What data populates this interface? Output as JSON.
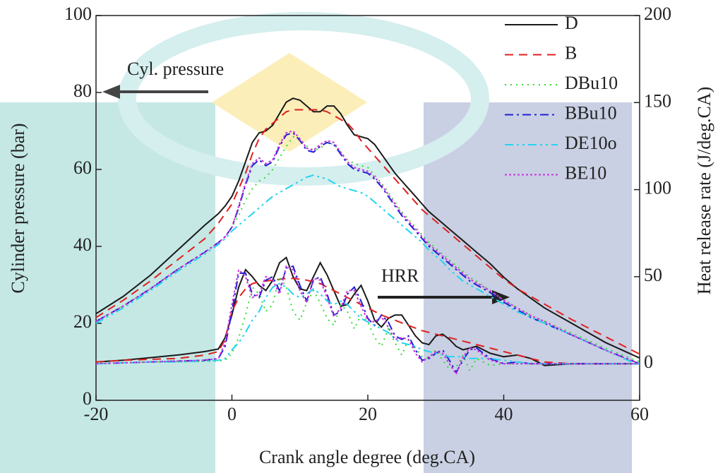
{
  "chart_data": {
    "type": "line",
    "x_label": "Crank angle degree (deg.CA)",
    "y_label": "Cylinder pressure (bar)",
    "y2_label": "Heat release rate (J/deg.CA)",
    "annotations": [
      "Cyl. pressure",
      "HRR"
    ],
    "xlim": [
      -20,
      60
    ],
    "xticks": [
      -20,
      0,
      20,
      40,
      60
    ],
    "ylim": [
      0,
      100
    ],
    "yticks": [
      0,
      20,
      40,
      60,
      80,
      100
    ],
    "y2lim": [
      -21,
      200
    ],
    "y2ticks": [
      0,
      50,
      100,
      150,
      200
    ],
    "legend": "upper right",
    "x": [
      -20,
      -16,
      -12,
      -8,
      -4,
      -2,
      -1,
      0,
      1,
      2,
      3,
      4,
      5,
      6,
      7,
      8,
      9,
      10,
      11,
      12,
      13,
      14,
      15,
      16,
      17,
      18,
      19,
      20,
      21,
      22,
      23,
      24,
      25,
      26,
      27,
      28,
      29,
      30,
      31,
      32,
      33,
      34,
      35,
      36,
      38,
      40,
      42,
      44,
      46,
      50,
      55,
      60
    ],
    "series": [
      {
        "name": "D",
        "color": "#1a1a1a",
        "dash": "none",
        "values": [
          22.5,
          27,
          32.5,
          39,
          45.5,
          48.5,
          50.5,
          53,
          57,
          62,
          67,
          69.5,
          70,
          71.5,
          74.5,
          77.5,
          78.5,
          78,
          76.5,
          75,
          75,
          76.5,
          76.5,
          74.5,
          71.5,
          69,
          68.5,
          68,
          66.5,
          64,
          61.5,
          59,
          57,
          55,
          53,
          51,
          49,
          47.5,
          46,
          44.5,
          43,
          41.5,
          40,
          38.5,
          35.5,
          32,
          29,
          26.5,
          24,
          20,
          15,
          11
        ]
      },
      {
        "name": "B",
        "color": "#e02020",
        "dash": "12,8",
        "values": [
          21.5,
          26,
          31,
          36.5,
          42,
          46,
          48.5,
          51,
          55,
          59,
          64,
          68,
          70.5,
          72,
          73.5,
          75,
          75.5,
          75.5,
          75.5,
          75.5,
          75.5,
          75,
          74,
          73,
          72,
          70,
          67.5,
          65.5,
          63.5,
          61.5,
          59.5,
          57.5,
          55.5,
          53.5,
          51.5,
          49.5,
          48,
          46.5,
          45,
          43.5,
          42,
          40.5,
          39,
          37.5,
          34.5,
          31.5,
          29,
          27,
          25,
          21,
          16.5,
          12
        ]
      },
      {
        "name": "DBu10",
        "color": "#33dd33",
        "dash": "2,6",
        "values": [
          20.5,
          24.5,
          29,
          34,
          38.5,
          41,
          42.5,
          45,
          48,
          52,
          55,
          57,
          58,
          60,
          63,
          66,
          68.5,
          68,
          66,
          65,
          65.5,
          67,
          66.5,
          64.5,
          62.5,
          61.5,
          61,
          60.5,
          58.5,
          56.5,
          54,
          51.5,
          49,
          47,
          45,
          43,
          41,
          39.5,
          38,
          36.5,
          35,
          33.5,
          32,
          31,
          28.5,
          26,
          24,
          22,
          20.5,
          17.5,
          13.5,
          10
        ]
      },
      {
        "name": "BBu10",
        "color": "#1f1fd6",
        "dash": "12,5,3,5",
        "values": [
          20.5,
          24.5,
          29,
          34,
          38.5,
          41,
          42.5,
          45,
          50,
          56,
          61,
          62.5,
          61,
          62,
          66,
          69,
          69.5,
          67.5,
          65,
          64.5,
          66,
          67,
          66.5,
          64,
          61.5,
          60,
          59.5,
          59,
          57.5,
          55.5,
          53,
          50.5,
          48,
          46,
          44,
          42,
          40,
          38.5,
          37,
          35.5,
          34,
          32.5,
          31,
          30,
          28,
          25.5,
          23.5,
          21.5,
          20,
          17,
          13,
          9.5
        ]
      },
      {
        "name": "DE10o",
        "color": "#22d4ee",
        "dash": "12,5,3,5,3,5",
        "values": [
          20,
          24,
          28.5,
          33.5,
          38,
          40.5,
          42,
          44,
          45.5,
          47,
          48.5,
          50,
          51.5,
          53,
          54,
          55,
          56,
          57,
          58,
          58.5,
          58,
          57.5,
          56.5,
          55.5,
          55,
          54.5,
          54,
          53,
          51.5,
          50,
          48.5,
          47,
          45.5,
          44,
          42.5,
          41,
          39,
          37.5,
          36,
          34,
          32.5,
          31,
          30,
          29,
          27,
          25,
          23,
          21.5,
          20,
          17,
          13,
          9
        ]
      },
      {
        "name": "BE10",
        "color": "#cc33dd",
        "dash": "3,3",
        "values": [
          20.5,
          24.5,
          29,
          34,
          38.5,
          41,
          42.5,
          45,
          50.5,
          56.5,
          61.5,
          63,
          61.5,
          62.5,
          66.5,
          69.5,
          70,
          68,
          65.5,
          65,
          66.5,
          67.5,
          67,
          64.5,
          62,
          60.5,
          60,
          59.5,
          58,
          56,
          53.5,
          51,
          48.5,
          46.5,
          44.5,
          42.5,
          40.5,
          39,
          37.5,
          36,
          34.5,
          33,
          31.5,
          30.5,
          28.5,
          26,
          24,
          22,
          20.5,
          17,
          13,
          9.5
        ]
      },
      {
        "axis": "y2",
        "color": "#1a1a1a",
        "dash": "none",
        "values": [
          1,
          2,
          3.5,
          5,
          7,
          8.5,
          15,
          28,
          44,
          54,
          50,
          45,
          42,
          48,
          58,
          61,
          50,
          43,
          42,
          50,
          58,
          51,
          42,
          33,
          34,
          40,
          45,
          36,
          25,
          21,
          26,
          28,
          28,
          22,
          16,
          12,
          11,
          16,
          17,
          14,
          10,
          8,
          9,
          10,
          6,
          4,
          5,
          3,
          -1,
          0,
          0,
          0
        ]
      },
      {
        "axis": "y2",
        "color": "#e02020",
        "dash": "12,8",
        "values": [
          1,
          2,
          2.5,
          3,
          5,
          7,
          14,
          30,
          38,
          43,
          46,
          47,
          47.5,
          48,
          48.5,
          49,
          49,
          48.5,
          48,
          47,
          46,
          44,
          42,
          40,
          38,
          36,
          34,
          32,
          30,
          28,
          26.5,
          25,
          23.5,
          22,
          20.5,
          19,
          18,
          17,
          16,
          15,
          14,
          13,
          12,
          11,
          9,
          7,
          5,
          3,
          1,
          0,
          0,
          0
        ]
      },
      {
        "axis": "y2",
        "color": "#33dd33",
        "dash": "2,6",
        "values": [
          0,
          0.5,
          1,
          1,
          1.5,
          1.5,
          2,
          6,
          15,
          28,
          44,
          40,
          30,
          34,
          50,
          44,
          30,
          25,
          35,
          42,
          35,
          26,
          22,
          34,
          30,
          20,
          28,
          24,
          15,
          10,
          20,
          12,
          5,
          14,
          9,
          4,
          3,
          8,
          2,
          -3,
          -2,
          5,
          -4,
          3,
          -1,
          0,
          0,
          0,
          0,
          0,
          0,
          0
        ]
      },
      {
        "axis": "y2",
        "color": "#1f1fd6",
        "dash": "12,5,3,5",
        "values": [
          0,
          0.5,
          1,
          1.5,
          2,
          3,
          10,
          30,
          52,
          52,
          40,
          38,
          48,
          50,
          42,
          55,
          56,
          45,
          36,
          48,
          50,
          40,
          28,
          30,
          40,
          44,
          36,
          26,
          22,
          28,
          24,
          16,
          14,
          16,
          8,
          2,
          3,
          6,
          8,
          2,
          -5,
          2,
          8,
          9,
          3,
          0,
          1,
          0,
          0,
          0,
          0,
          0
        ]
      },
      {
        "axis": "y2",
        "color": "#22d4ee",
        "dash": "12,5,3,5,3,5",
        "values": [
          0,
          0.5,
          1,
          1,
          1.5,
          2,
          3,
          8,
          12,
          18,
          25,
          30,
          38,
          44,
          46,
          44,
          40,
          38,
          40,
          43,
          40,
          36,
          34,
          36,
          34,
          30,
          26,
          24,
          22,
          20,
          18,
          14,
          12,
          11,
          10,
          8,
          7,
          6,
          5,
          4,
          4,
          4,
          3,
          3,
          3,
          2,
          1,
          0,
          0,
          0,
          0,
          0
        ]
      },
      {
        "axis": "y2",
        "color": "#cc33dd",
        "dash": "3,3",
        "values": [
          0,
          0.5,
          1,
          1.5,
          2,
          3,
          12,
          34,
          54,
          50,
          38,
          40,
          50,
          48,
          40,
          56,
          54,
          42,
          35,
          49,
          48,
          38,
          27,
          32,
          42,
          42,
          33,
          25,
          24,
          27,
          21,
          14,
          15,
          14,
          6,
          1,
          4,
          7,
          6,
          0,
          -6,
          4,
          9,
          8,
          2,
          0,
          0,
          0,
          0,
          0,
          0,
          0
        ]
      }
    ]
  }
}
